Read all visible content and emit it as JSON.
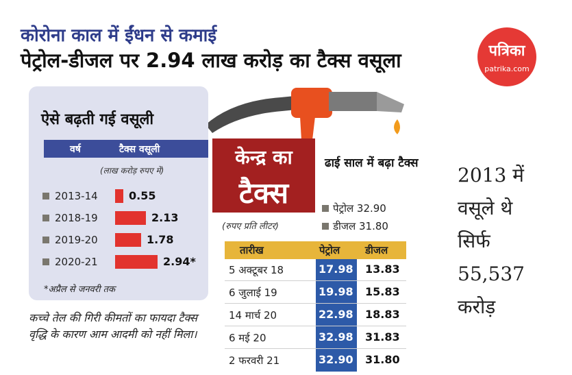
{
  "headline": {
    "line1": "कोरोना काल में ईंधन से कमाई",
    "line2": "पेट्रोल-डीजल पर 2.94 लाख करोड़ का टैक्स वसूला"
  },
  "logo": {
    "name": "पत्रिका",
    "site": "patrika.com"
  },
  "left_panel": {
    "title": "ऐसे बढ़ती गई वसूली",
    "col_year": "वर्ष",
    "col_tax": "टैक्स वसूली",
    "unit": "(लाख करोड़ रुपए में)",
    "rows": [
      {
        "year": "2013-14",
        "value": "0.55",
        "amount": 0.55
      },
      {
        "year": "2018-19",
        "value": "2.13",
        "amount": 2.13
      },
      {
        "year": "2019-20",
        "value": "1.78",
        "amount": 1.78
      },
      {
        "year": "2020-21",
        "value": "2.94*",
        "amount": 2.94
      }
    ],
    "footnote": "*अप्रैल से जनवरी तक"
  },
  "bottom_note": "कच्चे तेल की गिरी कीमतों का फायदा टैक्स वृद्धि के कारण आम आदमी को नहीं मिला।",
  "center": {
    "line1": "केन्द्र का",
    "line2": "टैक्स",
    "unit": "(रुपए प्रति लीटर)"
  },
  "rise": {
    "title": "ढाई साल में बढ़ा टैक्स",
    "items": [
      {
        "text": "पेट्रोल  32.90"
      },
      {
        "text": "डीजल 31.80"
      }
    ]
  },
  "table": {
    "headers": [
      "तारीख",
      "पेट्रोल",
      "डीजल"
    ],
    "rows": [
      {
        "date": "5 अक्टूबर 18",
        "petrol": "17.98",
        "diesel": "13.83"
      },
      {
        "date": "6 जुलाई 19",
        "petrol": "19.98",
        "diesel": "15.83"
      },
      {
        "date": "14 मार्च 20",
        "petrol": "22.98",
        "diesel": "18.83"
      },
      {
        "date": "6 मई 20",
        "petrol": "32.98",
        "diesel": "31.83"
      },
      {
        "date": "2 फरवरी 21",
        "petrol": "32.90",
        "diesel": "31.80"
      }
    ]
  },
  "right_text": [
    "2013 में",
    "वसूले थे",
    "सिर्फ",
    "55,537",
    "करोड़"
  ],
  "colors": {
    "headline_blue": "#2e3c8a",
    "bar_red": "#e2332e",
    "box_darkred": "#a32020",
    "table_gold": "#e7b53a",
    "petrol_blue": "#2d5aa8"
  }
}
